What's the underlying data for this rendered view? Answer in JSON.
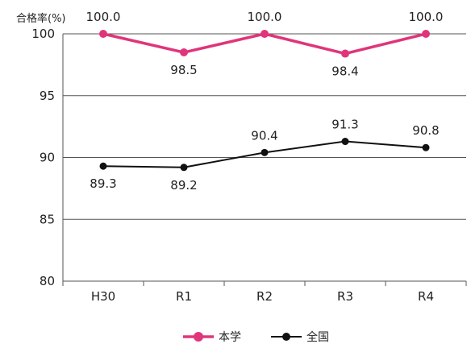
{
  "chart_data": {
    "type": "line",
    "ylabel": "合格率(%)",
    "categories": [
      "H30",
      "R1",
      "R2",
      "R3",
      "R4"
    ],
    "yticks": [
      "80",
      "85",
      "90",
      "95",
      "100"
    ],
    "ylim": [
      80,
      100
    ],
    "grid": true,
    "legend_position": "bottom-center",
    "series": [
      {
        "name": "本学",
        "color": "#e0357a",
        "values": [
          100.0,
          98.5,
          100.0,
          98.4,
          100.0
        ],
        "labels": [
          "100.0",
          "98.5",
          "100.0",
          "98.4",
          "100.0"
        ],
        "label_pos": [
          "above",
          "below",
          "above",
          "below",
          "above"
        ]
      },
      {
        "name": "全国",
        "color": "#111111",
        "values": [
          89.3,
          89.2,
          90.4,
          91.3,
          90.8
        ],
        "labels": [
          "89.3",
          "89.2",
          "90.4",
          "91.3",
          "90.8"
        ],
        "label_pos": [
          "below",
          "below",
          "above",
          "above",
          "above"
        ]
      }
    ]
  }
}
